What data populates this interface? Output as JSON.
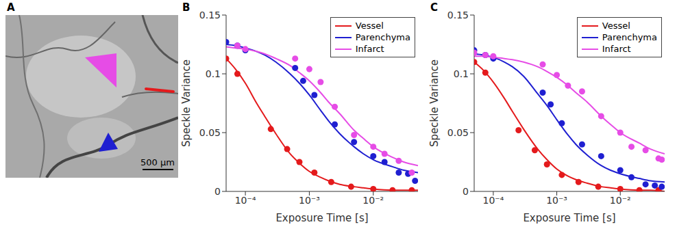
{
  "image_panel": {
    "panel_label": "A",
    "scale_bar_label": "500 μm"
  },
  "chart_data": [
    {
      "type": "line",
      "panel_label": "B",
      "xlabel": "Exposure Time [s]",
      "ylabel": "Speckle Variance",
      "log": "x",
      "grid": false,
      "legend": "upper right",
      "xlim": [
        5e-05,
        0.05
      ],
      "xticks": [
        {
          "value": 0.0001,
          "label": "10⁻⁴"
        },
        {
          "value": 0.001,
          "label": "10⁻³"
        },
        {
          "value": 0.01,
          "label": "10⁻²"
        }
      ],
      "ylim": [
        0,
        0.15
      ],
      "yticks": [
        0,
        0.05,
        0.1,
        0.15
      ],
      "fit_x": [
        5e-05,
        7e-05,
        0.0001,
        0.00015,
        0.0002,
        0.0003,
        0.0005,
        0.0007,
        0.001,
        0.0015,
        0.002,
        0.003,
        0.005,
        0.007,
        0.01,
        0.02,
        0.03,
        0.05
      ],
      "series": [
        {
          "name": "Vessel",
          "color": "#e41a1c",
          "x": [
            5e-05,
            7.5e-05,
            0.00025,
            0.00045,
            0.0007,
            0.0012,
            0.0022,
            0.0045,
            0.01,
            0.02,
            0.04
          ],
          "values": [
            0.113,
            0.1,
            0.053,
            0.036,
            0.025,
            0.016,
            0.008,
            0.004,
            0.002,
            0.001,
            0.001
          ],
          "fit_values": [
            0.113,
            0.104,
            0.092,
            0.075,
            0.064,
            0.049,
            0.032,
            0.024,
            0.017,
            0.012,
            0.009,
            0.006,
            0.004,
            0.003,
            0.002,
            0.001,
            0.001,
            0.001
          ]
        },
        {
          "name": "Parenchyma",
          "color": "#1f1fd1",
          "x": [
            5e-05,
            7.5e-05,
            0.0001,
            0.0006,
            0.0008,
            0.0012,
            0.0025,
            0.005,
            0.01,
            0.015,
            0.025,
            0.035,
            0.045
          ],
          "values": [
            0.127,
            0.124,
            0.12,
            0.105,
            0.094,
            0.082,
            0.057,
            0.042,
            0.03,
            0.025,
            0.016,
            0.015,
            0.009
          ],
          "fit_values": [
            0.125,
            0.124,
            0.122,
            0.119,
            0.116,
            0.11,
            0.1,
            0.092,
            0.082,
            0.069,
            0.06,
            0.049,
            0.038,
            0.032,
            0.027,
            0.021,
            0.018,
            0.016
          ]
        },
        {
          "name": "Infarct",
          "color": "#e64ce6",
          "x": [
            7.5e-05,
            0.0001,
            0.0006,
            0.001,
            0.0015,
            0.0025,
            0.005,
            0.01,
            0.015,
            0.025,
            0.04
          ],
          "values": [
            0.124,
            0.121,
            0.113,
            0.104,
            0.093,
            0.072,
            0.048,
            0.038,
            0.032,
            0.026,
            0.016
          ],
          "fit_values": [
            0.123,
            0.122,
            0.121,
            0.119,
            0.117,
            0.113,
            0.107,
            0.101,
            0.094,
            0.084,
            0.076,
            0.066,
            0.052,
            0.045,
            0.038,
            0.029,
            0.025,
            0.022
          ]
        }
      ]
    },
    {
      "type": "line",
      "panel_label": "C",
      "xlabel": "Exposure Time [s]",
      "ylabel": "Speckle Variance",
      "log": "x",
      "grid": false,
      "legend": "upper right",
      "xlim": [
        5e-05,
        0.05
      ],
      "xticks": [
        {
          "value": 0.0001,
          "label": "10⁻⁴"
        },
        {
          "value": 0.001,
          "label": "10⁻³"
        },
        {
          "value": 0.01,
          "label": "10⁻²"
        }
      ],
      "ylim": [
        0,
        0.15
      ],
      "yticks": [
        0,
        0.05,
        0.1,
        0.15
      ],
      "fit_x": [
        5e-05,
        7e-05,
        0.0001,
        0.00015,
        0.0002,
        0.0003,
        0.0005,
        0.0007,
        0.001,
        0.0015,
        0.002,
        0.003,
        0.005,
        0.007,
        0.01,
        0.02,
        0.03,
        0.05
      ],
      "series": [
        {
          "name": "Vessel",
          "color": "#e41a1c",
          "x": [
            5e-05,
            7.5e-05,
            0.00025,
            0.00045,
            0.0007,
            0.0012,
            0.0022,
            0.0045,
            0.01,
            0.02,
            0.04
          ],
          "values": [
            0.11,
            0.101,
            0.052,
            0.035,
            0.023,
            0.014,
            0.008,
            0.004,
            0.002,
            0.001,
            0.001
          ],
          "fit_values": [
            0.11,
            0.103,
            0.093,
            0.079,
            0.068,
            0.053,
            0.036,
            0.027,
            0.019,
            0.013,
            0.01,
            0.007,
            0.004,
            0.003,
            0.002,
            0.001,
            0.001,
            0
          ]
        },
        {
          "name": "Parenchyma",
          "color": "#1f1fd1",
          "x": [
            5e-05,
            7.5e-05,
            0.0001,
            0.0006,
            0.0008,
            0.0012,
            0.0025,
            0.005,
            0.01,
            0.015,
            0.025,
            0.035,
            0.045
          ],
          "values": [
            0.12,
            0.116,
            0.113,
            0.084,
            0.074,
            0.058,
            0.04,
            0.03,
            0.018,
            0.012,
            0.006,
            0.005,
            0.004
          ],
          "fit_values": [
            0.117,
            0.116,
            0.114,
            0.11,
            0.106,
            0.098,
            0.083,
            0.073,
            0.061,
            0.048,
            0.04,
            0.031,
            0.022,
            0.018,
            0.015,
            0.011,
            0.009,
            0.008
          ]
        },
        {
          "name": "Infarct",
          "color": "#e64ce6",
          "x": [
            5e-05,
            7.5e-05,
            0.0001,
            0.0006,
            0.001,
            0.0015,
            0.0025,
            0.005,
            0.01,
            0.015,
            0.025,
            0.04,
            0.045
          ],
          "values": [
            0.118,
            0.116,
            0.115,
            0.108,
            0.099,
            0.09,
            0.085,
            0.064,
            0.05,
            0.038,
            0.035,
            0.028,
            0.027
          ],
          "fit_values": [
            0.115,
            0.115,
            0.114,
            0.113,
            0.112,
            0.11,
            0.106,
            0.102,
            0.097,
            0.09,
            0.084,
            0.076,
            0.064,
            0.057,
            0.05,
            0.041,
            0.036,
            0.032
          ]
        }
      ]
    }
  ]
}
